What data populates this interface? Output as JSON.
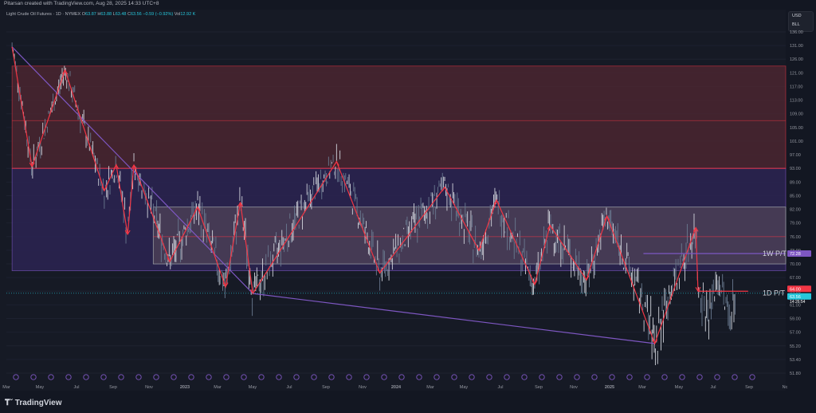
{
  "header": {
    "attribution": "Pitarsan created with TradingView.com, Aug 28, 2025 14:33 UTC+8"
  },
  "legend": {
    "symbol": "Light Crude Oil Futures · 1D · NYMEX",
    "o_label": "O",
    "o": "63.87",
    "h_label": "H",
    "h": "63.88",
    "l_label": "L",
    "l": "63.48",
    "c_label": "C",
    "c": "63.56",
    "change": "−0.59 (−0.92%)",
    "vol_label": "Vol",
    "vol": "12.92 K"
  },
  "currency": {
    "code": "USD",
    "unit": "BLL"
  },
  "footer": {
    "brand": "TradingView"
  },
  "colors": {
    "background": "#161a25",
    "upper_zone": "#4a2630",
    "middle_zone": "#2a2450",
    "lower_box": "#4a3e56",
    "swing_line": "#f23645",
    "trend_line": "#7e57c2",
    "price_tag": "#26c6da",
    "target_tag": "#7e57c2",
    "stop_tag": "#f23645"
  },
  "chart_data": {
    "type": "line",
    "title": "",
    "xlabel": "",
    "ylabel": "",
    "ylim": [
      50.0,
      138.0
    ],
    "grid": true,
    "y_ticks": [
      "136.00",
      "131.00",
      "126.00",
      "121.00",
      "117.00",
      "113.00",
      "109.00",
      "105.00",
      "101.00",
      "97.00",
      "93.00",
      "89.00",
      "85.00",
      "82.00",
      "79.00",
      "76.00",
      "73.00",
      "70.00",
      "67.00",
      "64.00",
      "61.00",
      "59.00",
      "57.00",
      "55.20",
      "53.40",
      "51.80"
    ],
    "x_ticks": [
      "Mar",
      "May",
      "Jul",
      "Sep",
      "Nov",
      "2023",
      "Mar",
      "May",
      "Jul",
      "Sep",
      "Nov",
      "2024",
      "Mar",
      "May",
      "Jul",
      "Sep",
      "Nov",
      "2025",
      "Mar",
      "May",
      "Jul",
      "Sep",
      "Nc"
    ],
    "zones": [
      {
        "name": "upper-resistance-zone",
        "top": 123.5,
        "bottom": 93.0,
        "mid": 107.0
      },
      {
        "name": "middle-zone",
        "top": 93.0,
        "bottom": 68.5
      },
      {
        "name": "inner-range-box",
        "top": 82.5,
        "bottom": 70.0,
        "mid": 76.0
      }
    ],
    "levels": [
      {
        "label": "1W P/T",
        "value": 72.28,
        "tag": "72.28"
      },
      {
        "label": "1D P/T",
        "value": 64.0,
        "tag": "64.00"
      }
    ],
    "current_price": {
      "value": 63.56,
      "tag": "63.56",
      "countdown": "14:26:54"
    },
    "series": [
      {
        "values_x": [
          "2022-03-07",
          "2022-04-11",
          "2022-06-08",
          "2022-08-16",
          "2022-09-06",
          "2022-09-26",
          "2022-10-07",
          "2022-12-09",
          "2023-01-27",
          "2023-03-17",
          "2023-04-12",
          "2023-05-04",
          "2023-09-28",
          "2023-12-13",
          "2024-04-05",
          "2024-06-04",
          "2024-07-05",
          "2024-09-10",
          "2024-10-07",
          "2024-12-10",
          "2025-01-15",
          "2025-04-09",
          "2025-06-20",
          "2025-06-24"
        ],
        "values_y": [
          130.5,
          93.5,
          122.0,
          86.5,
          94.0,
          76.5,
          94.0,
          70.5,
          82.5,
          65.0,
          83.5,
          63.5,
          95.0,
          68.0,
          87.5,
          73.0,
          84.0,
          65.5,
          78.5,
          66.5,
          80.5,
          55.5,
          78.0,
          64.0
        ]
      },
      {
        "values_x": [
          "2022-03-07",
          "2023-05-04",
          "2025-04-09"
        ],
        "values_y": [
          130.5,
          63.5,
          55.5
        ]
      }
    ]
  }
}
